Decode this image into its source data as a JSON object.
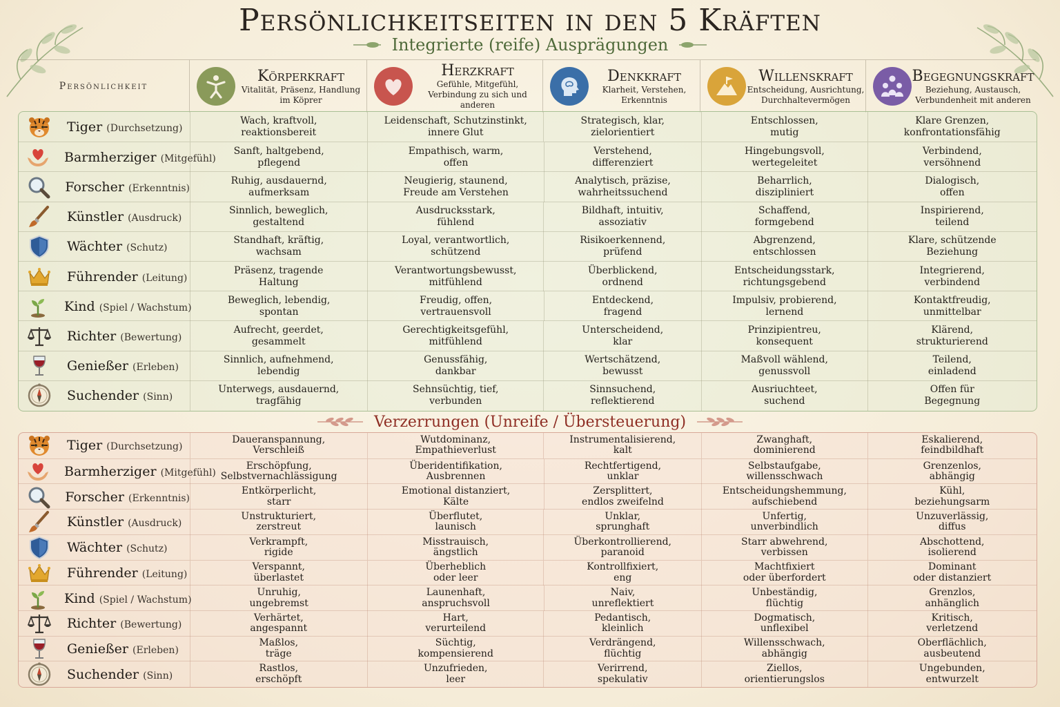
{
  "title": "Persönlichkeitseiten in den 5 Kräften",
  "subtitle": "Integrierte (reife) Ausprägungen",
  "section2_title": "Verzerrungen (Unreife / Übersteuerung)",
  "header": {
    "persona_label": "Persönlichkeit",
    "forces": [
      {
        "name": "Körperkraft",
        "desc": "Vitalität, Präsenz, Handlung im Köprer",
        "icon": "body-icon",
        "color": "#8a9a5a"
      },
      {
        "name": "Herzkraft",
        "desc": "Gefühle, Mitgefühl, Verbindung zu sich und anderen",
        "icon": "heart-icon",
        "color": "#c8554e"
      },
      {
        "name": "Denkkraft",
        "desc": "Klarheit, Verstehen, Erkenntnis",
        "icon": "head-icon",
        "color": "#3b6fa8"
      },
      {
        "name": "Willenskraft",
        "desc": "Entscheidung, Ausrichtung, Durchhaltevermögen",
        "icon": "mountain-flag-icon",
        "color": "#d9a43a"
      },
      {
        "name": "Begegnungskraft",
        "desc": "Beziehung, Austausch, Verbundenheit mit anderen",
        "icon": "people-icon",
        "color": "#7a5ca6"
      }
    ]
  },
  "personas": [
    {
      "name": "Tiger",
      "sub": "(Durchsetzung)",
      "icon": "tiger-icon"
    },
    {
      "name": "Barmherziger",
      "sub": "(Mitgefühl)",
      "icon": "heart-hands-icon"
    },
    {
      "name": "Forscher",
      "sub": "(Erkenntnis)",
      "icon": "magnifier-icon"
    },
    {
      "name": "Künstler",
      "sub": "(Ausdruck)",
      "icon": "brush-icon"
    },
    {
      "name": "Wächter",
      "sub": "(Schutz)",
      "icon": "shield-icon"
    },
    {
      "name": "Führender",
      "sub": "(Leitung)",
      "icon": "crown-icon"
    },
    {
      "name": "Kind",
      "sub": "(Spiel / Wachstum)",
      "icon": "sprout-icon"
    },
    {
      "name": "Richter",
      "sub": "(Bewertung)",
      "icon": "scales-icon"
    },
    {
      "name": "Genießer",
      "sub": "(Erleben)",
      "icon": "wine-glass-icon"
    },
    {
      "name": "Suchender",
      "sub": "(Sinn)",
      "icon": "compass-icon"
    }
  ],
  "integrated": [
    [
      [
        "Wach, kraftvoll,",
        "reaktionsbereit"
      ],
      [
        "Leidenschaft, Schutzinstinkt,",
        "innere Glut"
      ],
      [
        "Strategisch, klar,",
        "zielorientiert"
      ],
      [
        "Entschlossen,",
        "mutig"
      ],
      [
        "Klare Grenzen,",
        "konfrontationsfähig"
      ]
    ],
    [
      [
        "Sanft, haltgebend,",
        "pflegend"
      ],
      [
        "Empathisch, warm,",
        "offen"
      ],
      [
        "Verstehend,",
        "differenziert"
      ],
      [
        "Hingebungsvoll,",
        "wertegeleitet"
      ],
      [
        "Verbindend,",
        "versöhnend"
      ]
    ],
    [
      [
        "Ruhig, ausdauernd,",
        "aufmerksam"
      ],
      [
        "Neugierig, staunend,",
        "Freude am Verstehen"
      ],
      [
        "Analytisch, präzise,",
        "wahrheitssuchend"
      ],
      [
        "Beharrlich,",
        "diszipliniert"
      ],
      [
        "Dialogisch,",
        "offen"
      ]
    ],
    [
      [
        "Sinnlich, beweglich,",
        "gestaltend"
      ],
      [
        "Ausdrucksstark,",
        "fühlend"
      ],
      [
        "Bildhaft, intuitiv,",
        "assoziativ"
      ],
      [
        "Schaffend,",
        "formgebend"
      ],
      [
        "Inspirierend,",
        "teilend"
      ]
    ],
    [
      [
        "Standhaft, kräftig,",
        "wachsam"
      ],
      [
        "Loyal, verantwortlich,",
        "schützend"
      ],
      [
        "Risikoerkennend,",
        "prüfend"
      ],
      [
        "Abgrenzend,",
        "entschlossen"
      ],
      [
        "Klare, schützende",
        "Beziehung"
      ]
    ],
    [
      [
        "Präsenz, tragende",
        "Haltung"
      ],
      [
        "Verantwortungsbewusst,",
        "mitfühlend"
      ],
      [
        "Überblickend,",
        "ordnend"
      ],
      [
        "Entscheidungsstark,",
        "richtungsgebend"
      ],
      [
        "Integrierend,",
        "verbindend"
      ]
    ],
    [
      [
        "Beweglich, lebendig,",
        "spontan"
      ],
      [
        "Freudig, offen,",
        "vertrauensvoll"
      ],
      [
        "Entdeckend,",
        "fragend"
      ],
      [
        "Impulsiv, probierend,",
        "lernend"
      ],
      [
        "Kontaktfreudig,",
        "unmittelbar"
      ]
    ],
    [
      [
        "Aufrecht, geerdet,",
        "gesammelt"
      ],
      [
        "Gerechtigkeitsgefühl,",
        "mitfühlend"
      ],
      [
        "Unterscheidend,",
        "klar"
      ],
      [
        "Prinzipientreu,",
        "konsequent"
      ],
      [
        "Klärend,",
        "strukturierend"
      ]
    ],
    [
      [
        "Sinnlich, aufnehmend,",
        "lebendig"
      ],
      [
        "Genussfähig,",
        "dankbar"
      ],
      [
        "Wertschätzend,",
        "bewusst"
      ],
      [
        "Maßvoll wählend,",
        "genussvoll"
      ],
      [
        "Teilend,",
        "einladend"
      ]
    ],
    [
      [
        "Unterwegs, ausdauernd,",
        "tragfähig"
      ],
      [
        "Sehnsüchtig, tief,",
        "verbunden"
      ],
      [
        "Sinnsuchend,",
        "reflektierend"
      ],
      [
        "Ausriuchteet,",
        "suchend"
      ],
      [
        "Offen für",
        "Begegnung"
      ]
    ]
  ],
  "distortions": [
    [
      [
        "Daueranspannung,",
        "Verschleiß"
      ],
      [
        "Wutdominanz,",
        "Empathieverlust"
      ],
      [
        "Instrumentalisierend,",
        "kalt"
      ],
      [
        "Zwanghaft,",
        "dominierend"
      ],
      [
        "Eskalierend,",
        "feindbildhaft"
      ]
    ],
    [
      [
        "Erschöpfung,",
        "Selbstvernachlässigung"
      ],
      [
        "Überidentifikation,",
        "Ausbrennen"
      ],
      [
        "Rechtfertigend,",
        "unklar"
      ],
      [
        "Selbstaufgabe,",
        "willensschwach"
      ],
      [
        "Grenzenlos,",
        "abhängig"
      ]
    ],
    [
      [
        "Entkörperlicht,",
        "starr"
      ],
      [
        "Emotional distanziert,",
        "Kälte"
      ],
      [
        "Zersplittert,",
        "endlos zweifelnd"
      ],
      [
        "Entscheidungshemmung,",
        "aufschiebend"
      ],
      [
        "Kühl,",
        "beziehungsarm"
      ]
    ],
    [
      [
        "Unstrukturiert,",
        "zerstreut"
      ],
      [
        "Überflutet,",
        "launisch"
      ],
      [
        "Unklar,",
        "sprunghaft"
      ],
      [
        "Unfertig,",
        "unverbindlich"
      ],
      [
        "Unzuverlässig,",
        "diffus"
      ]
    ],
    [
      [
        "Verkrampft,",
        "rigide"
      ],
      [
        "Misstrauisch,",
        "ängstlich"
      ],
      [
        "Überkontrollierend,",
        "paranoid"
      ],
      [
        "Starr abwehrend,",
        "verbissen"
      ],
      [
        "Abschottend,",
        "isolierend"
      ]
    ],
    [
      [
        "Verspannt,",
        "überlastet"
      ],
      [
        "Überheblich",
        "oder leer"
      ],
      [
        "Kontrollfixiert,",
        "eng"
      ],
      [
        "Machtfixiert",
        "oder überfordert"
      ],
      [
        "Dominant",
        "oder distanziert"
      ]
    ],
    [
      [
        "Unruhig,",
        "ungebremst"
      ],
      [
        "Launenhaft,",
        "anspruchsvoll"
      ],
      [
        "Naiv,",
        "unreflektiert"
      ],
      [
        "Unbeständig,",
        "flüchtig"
      ],
      [
        "Grenzlos,",
        "anhänglich"
      ]
    ],
    [
      [
        "Verhärtet,",
        "angespannt"
      ],
      [
        "Hart,",
        "verurteilend"
      ],
      [
        "Pedantisch,",
        "kleinlich"
      ],
      [
        "Dogmatisch,",
        "unflexibel"
      ],
      [
        "Kritisch,",
        "verletzend"
      ]
    ],
    [
      [
        "Maßlos,",
        "träge"
      ],
      [
        "Süchtig,",
        "kompensierend"
      ],
      [
        "Verdrängend,",
        "flüchtig"
      ],
      [
        "Willensschwach,",
        "abhängig"
      ],
      [
        "Oberflächlich,",
        "ausbeutend"
      ]
    ],
    [
      [
        "Rastlos,",
        "erschöpft"
      ],
      [
        "Unzufrieden,",
        "leer"
      ],
      [
        "Verirrend,",
        "spekulativ"
      ],
      [
        "Ziellos,",
        "orientierungslos"
      ],
      [
        "Ungebunden,",
        "entwurzelt"
      ]
    ]
  ]
}
